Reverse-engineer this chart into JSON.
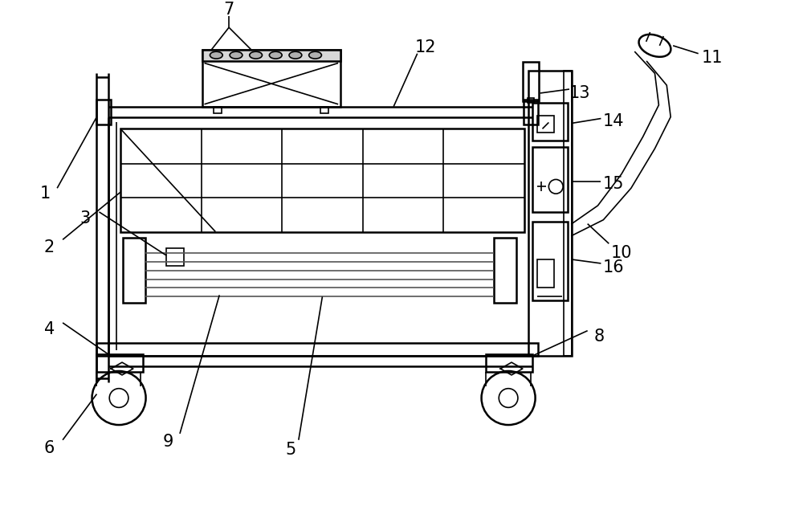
{
  "bg_color": "#ffffff",
  "line_color": "#000000",
  "lw_main": 1.8,
  "lw_thin": 1.2,
  "figsize": [
    10.0,
    6.3
  ],
  "dpi": 100
}
